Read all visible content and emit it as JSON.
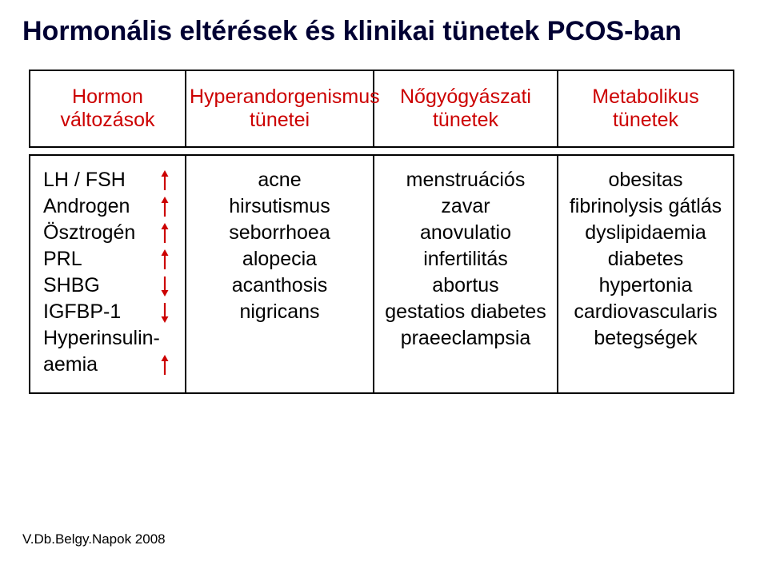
{
  "title": "Hormonális eltérések és klinikai tünetek PCOS-ban",
  "footer": "V.Db.Belgy.Napok 2008",
  "colors": {
    "title": "#000033",
    "header_text": "#cc0000",
    "body_text": "#000000",
    "border": "#000000",
    "arrow": "#cc0000",
    "background": "#ffffff"
  },
  "header": {
    "c1a": "Hormon",
    "c1b": "változások",
    "c2a": "Hyperandorgenismus",
    "c2b": "tünetei",
    "c3a": "Nőgyógyászati",
    "c3b": "tünetek",
    "c4a": "Metabolikus",
    "c4b": "tünetek"
  },
  "hormon": {
    "r0": {
      "label": "LH / FSH",
      "dir": "up"
    },
    "r1": {
      "label": "Androgen",
      "dir": "up"
    },
    "r2": {
      "label": "Ösztrogén",
      "dir": "up"
    },
    "r3": {
      "label": "PRL",
      "dir": "up"
    },
    "r4": {
      "label": "SHBG",
      "dir": "down"
    },
    "r5": {
      "label": "IGFBP-1",
      "dir": "down"
    },
    "r6": {
      "label": "Hyperinsulin-",
      "dir": ""
    },
    "r7": {
      "label": "aemia",
      "dir": "up"
    }
  },
  "col2": {
    "r0": "acne",
    "r1": "hirsutismus",
    "r2": "seborrhoea",
    "r3": "alopecia",
    "r4": "acanthosis",
    "r5": "nigricans"
  },
  "col3": {
    "r0": "menstruációs zavar",
    "r1": "anovulatio",
    "r2": "infertilitás",
    "r3": "abortus",
    "r4": "gestatios diabetes",
    "r5": "praeeclampsia"
  },
  "col4": {
    "r0": "obesitas",
    "r1": "fibrinolysis gátlás",
    "r2": "dyslipidaemia",
    "r3": "diabetes",
    "r4": "hypertonia",
    "r5": "cardiovascularis",
    "r6": "betegségek"
  }
}
